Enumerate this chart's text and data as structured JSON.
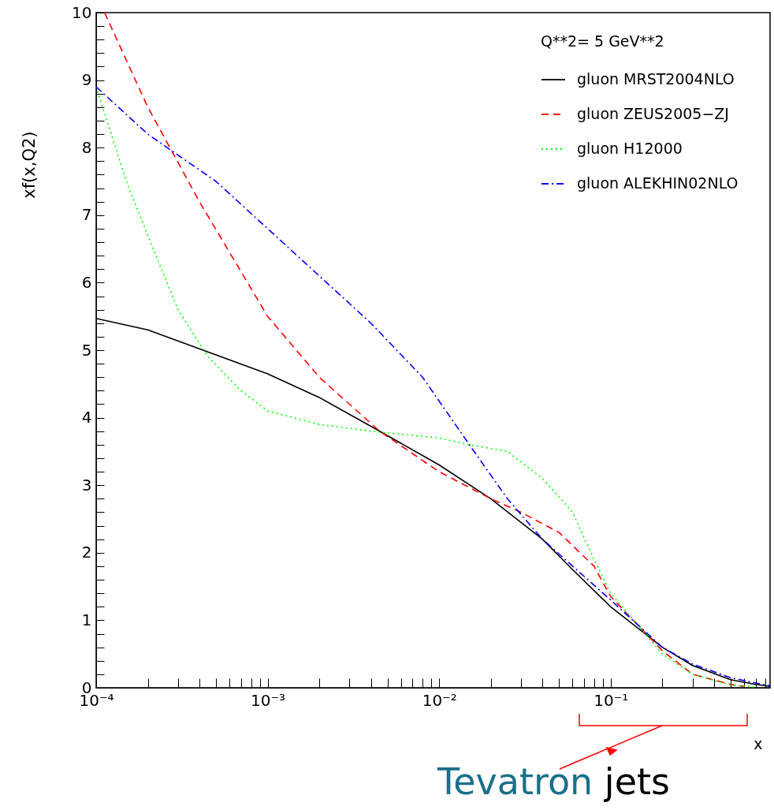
{
  "chart_data": {
    "type": "line",
    "xlabel": "x",
    "ylabel": "xf(x,Q2)",
    "legend_title": "Q**2=   5          GeV**2",
    "legend": "top right",
    "grid": false,
    "log": "x",
    "xlim": [
      0.0001,
      0.85
    ],
    "ylim": [
      0,
      10
    ],
    "xticks": [
      {
        "value": 0.0001,
        "label": "10⁻⁴"
      },
      {
        "value": 0.0002,
        "label": null
      },
      {
        "value": 0.0003,
        "label": null
      },
      {
        "value": 0.0004,
        "label": null
      },
      {
        "value": 0.0005,
        "label": null
      },
      {
        "value": 0.0006,
        "label": null
      },
      {
        "value": 0.0007,
        "label": null
      },
      {
        "value": 0.0008,
        "label": null
      },
      {
        "value": 0.0009,
        "label": null
      },
      {
        "value": 0.001,
        "label": "10⁻³"
      },
      {
        "value": 0.002,
        "label": null
      },
      {
        "value": 0.003,
        "label": null
      },
      {
        "value": 0.004,
        "label": null
      },
      {
        "value": 0.005,
        "label": null
      },
      {
        "value": 0.006,
        "label": null
      },
      {
        "value": 0.007,
        "label": null
      },
      {
        "value": 0.008,
        "label": null
      },
      {
        "value": 0.009,
        "label": null
      },
      {
        "value": 0.01,
        "label": "10⁻²"
      },
      {
        "value": 0.02,
        "label": null
      },
      {
        "value": 0.03,
        "label": null
      },
      {
        "value": 0.04,
        "label": null
      },
      {
        "value": 0.05,
        "label": null
      },
      {
        "value": 0.06,
        "label": null
      },
      {
        "value": 0.07,
        "label": null
      },
      {
        "value": 0.08,
        "label": null
      },
      {
        "value": 0.09,
        "label": null
      },
      {
        "value": 0.1,
        "label": "10⁻¹"
      },
      {
        "value": 0.2,
        "label": null
      },
      {
        "value": 0.3,
        "label": null
      },
      {
        "value": 0.4,
        "label": null
      },
      {
        "value": 0.5,
        "label": null
      },
      {
        "value": 0.6,
        "label": null
      },
      {
        "value": 0.7,
        "label": null
      },
      {
        "value": 0.8,
        "label": null
      }
    ],
    "yticks": [
      0,
      {
        "value": 0.2,
        "label": null
      },
      {
        "value": 0.4,
        "label": null
      },
      {
        "value": 0.6,
        "label": null
      },
      {
        "value": 0.8,
        "label": null
      },
      1,
      {
        "value": 1.2,
        "label": null
      },
      {
        "value": 1.4,
        "label": null
      },
      {
        "value": 1.6,
        "label": null
      },
      {
        "value": 1.8,
        "label": null
      },
      2,
      {
        "value": 2.2,
        "label": null
      },
      {
        "value": 2.4,
        "label": null
      },
      {
        "value": 2.6,
        "label": null
      },
      {
        "value": 2.8,
        "label": null
      },
      3,
      {
        "value": 3.2,
        "label": null
      },
      {
        "value": 3.4,
        "label": null
      },
      {
        "value": 3.6,
        "label": null
      },
      {
        "value": 3.8,
        "label": null
      },
      4,
      {
        "value": 4.2,
        "label": null
      },
      {
        "value": 4.4,
        "label": null
      },
      {
        "value": 4.6,
        "label": null
      },
      {
        "value": 4.8,
        "label": null
      },
      5,
      {
        "value": 5.2,
        "label": null
      },
      {
        "value": 5.4,
        "label": null
      },
      {
        "value": 5.6,
        "label": null
      },
      {
        "value": 5.8,
        "label": null
      },
      6,
      {
        "value": 6.2,
        "label": null
      },
      {
        "value": 6.4,
        "label": null
      },
      {
        "value": 6.6,
        "label": null
      },
      {
        "value": 6.8,
        "label": null
      },
      7,
      {
        "value": 7.2,
        "label": null
      },
      {
        "value": 7.4,
        "label": null
      },
      {
        "value": 7.6,
        "label": null
      },
      {
        "value": 7.8,
        "label": null
      },
      8,
      {
        "value": 8.2,
        "label": null
      },
      {
        "value": 8.4,
        "label": null
      },
      {
        "value": 8.6,
        "label": null
      },
      {
        "value": 8.8,
        "label": null
      },
      9,
      {
        "value": 9.2,
        "label": null
      },
      {
        "value": 9.4,
        "label": null
      },
      {
        "value": 9.6,
        "label": null
      },
      {
        "value": 9.8,
        "label": null
      },
      10
    ],
    "series": [
      {
        "name": "gluon   MRST2004NLO",
        "color": "#000000",
        "line_style": "solid",
        "x": [
          0.0001,
          0.0002,
          0.0004,
          0.001,
          0.002,
          0.0045,
          0.01,
          0.02,
          0.04,
          0.06,
          0.1,
          0.2,
          0.3,
          0.5,
          0.7,
          0.85
        ],
        "values": [
          5.47,
          5.3,
          5.02,
          4.65,
          4.3,
          3.8,
          3.3,
          2.8,
          2.2,
          1.75,
          1.2,
          0.6,
          0.33,
          0.12,
          0.05,
          0.02
        ]
      },
      {
        "name": "gluon   ZEUS2005−ZJ",
        "color": "#ff0000",
        "line_style": "dashed",
        "x": [
          0.000112,
          0.0002,
          0.0004,
          0.001,
          0.002,
          0.0045,
          0.01,
          0.02,
          0.03,
          0.05,
          0.08,
          0.1,
          0.2,
          0.3,
          0.5,
          0.6
        ],
        "values": [
          10,
          8.6,
          7.2,
          5.5,
          4.6,
          3.8,
          3.2,
          2.8,
          2.6,
          2.3,
          1.8,
          1.35,
          0.55,
          0.2,
          0.05,
          0.02
        ]
      },
      {
        "name": "gluon   H12000",
        "color": "#00ff00",
        "line_style": "dotted",
        "x": [
          0.0001,
          0.00015,
          0.0002,
          0.0003,
          0.00045,
          0.0007,
          0.001,
          0.002,
          0.004,
          0.01,
          0.015,
          0.025,
          0.04,
          0.06,
          0.08,
          0.1,
          0.2,
          0.3,
          0.5,
          0.7
        ],
        "values": [
          8.9,
          7.5,
          6.7,
          5.6,
          4.9,
          4.4,
          4.1,
          3.9,
          3.8,
          3.7,
          3.6,
          3.5,
          3.1,
          2.6,
          1.9,
          1.4,
          0.5,
          0.2,
          0.04,
          0.01
        ]
      },
      {
        "name": "gluon   ALEKHIN02NLO",
        "color": "#0000ff",
        "line_style": "dashdot",
        "x": [
          0.0001,
          0.0002,
          0.0005,
          0.001,
          0.002,
          0.004,
          0.008,
          0.015,
          0.025,
          0.04,
          0.1,
          0.2,
          0.3,
          0.5,
          0.7,
          0.85
        ],
        "values": [
          8.9,
          8.2,
          7.5,
          6.8,
          6.1,
          5.4,
          4.6,
          3.6,
          2.8,
          2.2,
          1.3,
          0.6,
          0.35,
          0.15,
          0.07,
          0.03
        ]
      }
    ],
    "annotations": [
      "Tevatron jets"
    ]
  }
}
